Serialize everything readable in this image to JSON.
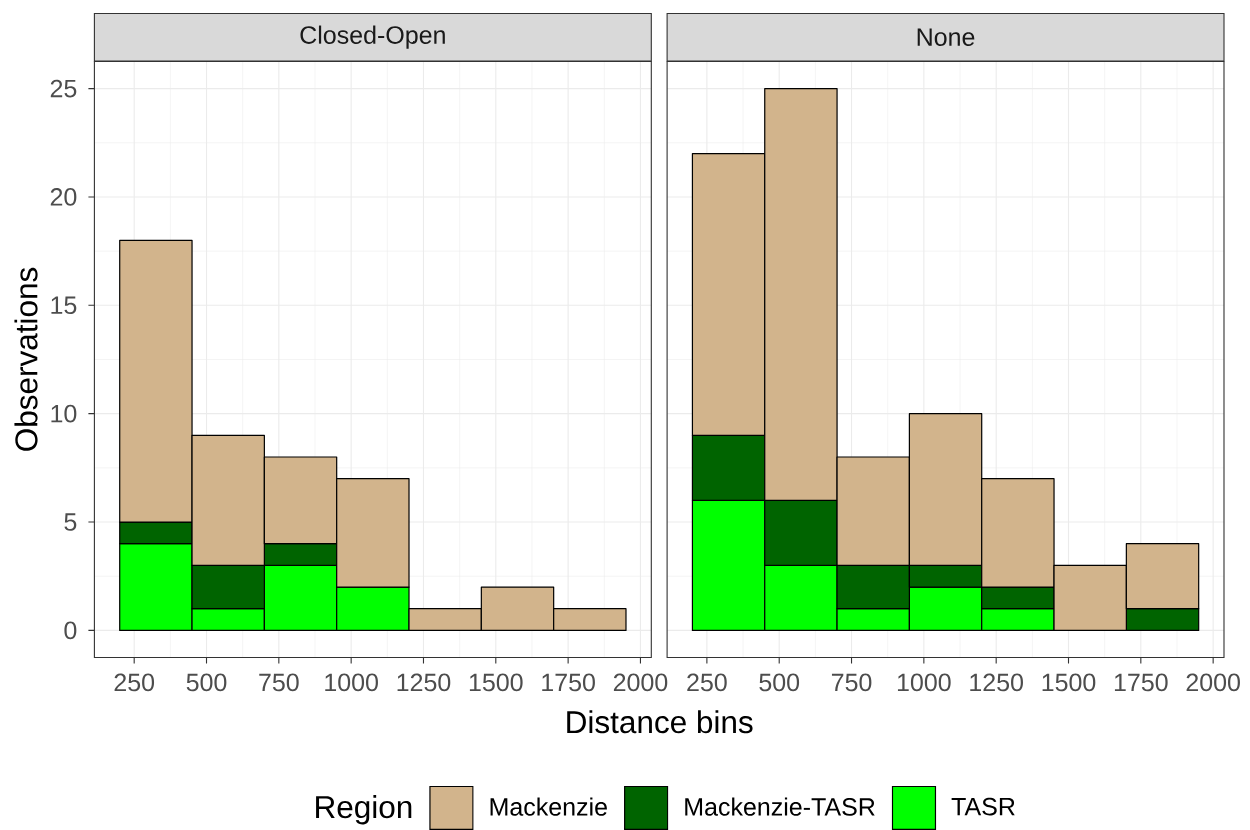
{
  "chart_data": [
    {
      "type": "bar",
      "title": "Closed-Open",
      "xlabel": "Distance bins",
      "ylabel": "Observations",
      "legend_title": "Region",
      "x": [
        325,
        575,
        825,
        1075,
        1325,
        1575,
        1825
      ],
      "series": [
        {
          "name": "TASR",
          "color": "#00ff00",
          "values": [
            4,
            1,
            3,
            2,
            0,
            0,
            0
          ]
        },
        {
          "name": "Mackenzie-TASR",
          "color": "#006400",
          "values": [
            1,
            2,
            1,
            0,
            0,
            0,
            0
          ]
        },
        {
          "name": "Mackenzie",
          "color": "#d2b48c",
          "values": [
            13,
            6,
            4,
            5,
            1,
            2,
            1
          ]
        }
      ],
      "stacked": true,
      "xlim": [
        112.5,
        2037.5
      ],
      "ylim": [
        -1.25,
        26.25
      ],
      "xticks": [
        250,
        500,
        750,
        1000,
        1250,
        1500,
        1750,
        2000
      ],
      "yticks": [
        0,
        5,
        10,
        15,
        20,
        25
      ],
      "grid": true,
      "legend": "bottom"
    },
    {
      "type": "bar",
      "title": "None",
      "x": [
        325,
        575,
        825,
        1075,
        1325,
        1575,
        1825
      ],
      "series": [
        {
          "color": "#00ff00",
          "values": [
            6,
            3,
            1,
            2,
            1,
            0,
            0
          ]
        },
        {
          "color": "#006400",
          "values": [
            3,
            3,
            2,
            1,
            1,
            0,
            1
          ]
        },
        {
          "color": "#d2b48c",
          "values": [
            13,
            19,
            5,
            7,
            5,
            3,
            3
          ]
        }
      ],
      "stacked": true,
      "xlim": [
        112.5,
        2037.5
      ],
      "ylim": [
        -1.25,
        26.25
      ],
      "xticks": [
        250,
        500,
        750,
        1000,
        1250,
        1500,
        1750,
        2000
      ],
      "yticks": [
        0,
        5,
        10,
        15,
        20,
        25
      ],
      "grid": true,
      "tick_labels": "x"
    }
  ]
}
